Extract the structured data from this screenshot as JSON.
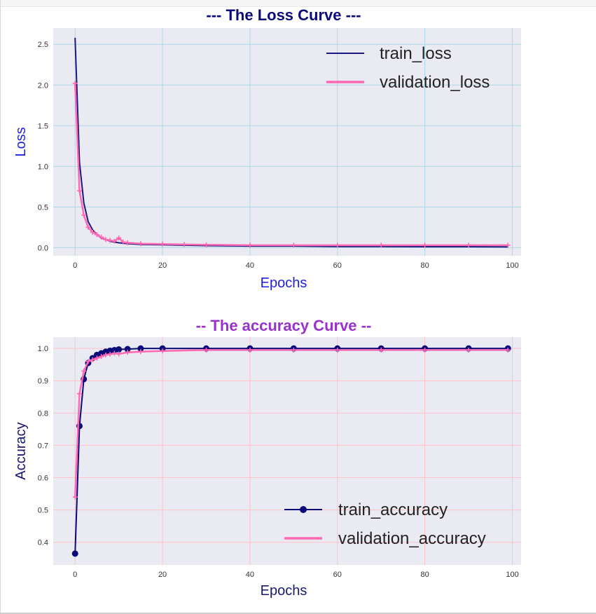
{
  "chart_data": [
    {
      "type": "line",
      "title": "--- The Loss Curve ---",
      "xlabel": "Epochs",
      "ylabel": "Loss",
      "xlim": [
        -5,
        102
      ],
      "ylim": [
        -0.1,
        2.7
      ],
      "xticks": [
        0,
        20,
        40,
        60,
        80,
        100
      ],
      "yticks": [
        0.0,
        0.5,
        1.0,
        1.5,
        2.0,
        2.5
      ],
      "ytick_labels": [
        "0.0",
        "0.5",
        "1.0",
        "1.5",
        "2.0",
        "2.5"
      ],
      "grid": true,
      "legend_position": "top-right",
      "colors": {
        "title": "#0a0a78",
        "labels": "#1e1ee6",
        "grid": "#add8e6",
        "background": "#eaeaf2"
      },
      "series": [
        {
          "name": "train_loss",
          "color": "#1a1a80",
          "marker": "none",
          "x": [
            0,
            1,
            2,
            3,
            4,
            5,
            6,
            7,
            8,
            9,
            10,
            12,
            15,
            20,
            25,
            30,
            40,
            50,
            60,
            70,
            80,
            90,
            99
          ],
          "y": [
            2.58,
            1.05,
            0.55,
            0.32,
            0.22,
            0.16,
            0.12,
            0.1,
            0.08,
            0.07,
            0.06,
            0.05,
            0.04,
            0.035,
            0.03,
            0.025,
            0.02,
            0.02,
            0.015,
            0.015,
            0.012,
            0.012,
            0.01
          ]
        },
        {
          "name": "validation_loss",
          "color": "#ff69b4",
          "marker": "plus",
          "x": [
            0,
            1,
            2,
            3,
            4,
            5,
            6,
            7,
            8,
            9,
            10,
            11,
            12,
            15,
            20,
            25,
            30,
            40,
            50,
            60,
            70,
            80,
            90,
            99
          ],
          "y": [
            2.02,
            0.7,
            0.4,
            0.25,
            0.19,
            0.16,
            0.13,
            0.1,
            0.09,
            0.08,
            0.12,
            0.07,
            0.06,
            0.05,
            0.045,
            0.04,
            0.035,
            0.03,
            0.03,
            0.03,
            0.03,
            0.03,
            0.03,
            0.03
          ]
        }
      ]
    },
    {
      "type": "line",
      "title": "-- The accuracy Curve --",
      "xlabel": "Epochs",
      "ylabel": "Accuracy",
      "xlim": [
        -5,
        102
      ],
      "ylim": [
        0.33,
        1.035
      ],
      "xticks": [
        0,
        20,
        40,
        60,
        80,
        100
      ],
      "yticks": [
        0.4,
        0.5,
        0.6,
        0.7,
        0.8,
        0.9,
        1.0
      ],
      "ytick_labels": [
        "0.4",
        "0.5",
        "0.6",
        "0.7",
        "0.8",
        "0.9",
        "1.0"
      ],
      "grid": true,
      "legend_position": "bottom-right",
      "colors": {
        "title": "#9932cc",
        "labels": "#191970",
        "grid": "#ffc0cb",
        "background": "#eaeaf2"
      },
      "series": [
        {
          "name": "train_accuracy",
          "color": "#0a0a78",
          "marker": "circle",
          "x": [
            0,
            1,
            2,
            3,
            4,
            5,
            6,
            7,
            8,
            9,
            10,
            12,
            15,
            20,
            30,
            40,
            50,
            60,
            70,
            80,
            90,
            99
          ],
          "y": [
            0.365,
            0.76,
            0.905,
            0.955,
            0.97,
            0.98,
            0.985,
            0.99,
            0.993,
            0.995,
            0.997,
            0.998,
            1.0,
            1.0,
            1.0,
            1.0,
            1.0,
            1.0,
            1.0,
            1.0,
            1.0,
            1.0
          ]
        },
        {
          "name": "validation_accuracy",
          "color": "#ff69b4",
          "marker": "plus",
          "x": [
            0,
            1,
            2,
            3,
            4,
            5,
            6,
            7,
            8,
            9,
            10,
            12,
            15,
            20,
            30,
            40,
            50,
            60,
            70,
            80,
            90,
            99
          ],
          "y": [
            0.54,
            0.86,
            0.93,
            0.96,
            0.965,
            0.97,
            0.975,
            0.98,
            0.982,
            0.985,
            0.983,
            0.988,
            0.99,
            0.992,
            0.995,
            0.995,
            0.995,
            0.995,
            0.995,
            0.995,
            0.995,
            0.995
          ]
        }
      ]
    }
  ]
}
